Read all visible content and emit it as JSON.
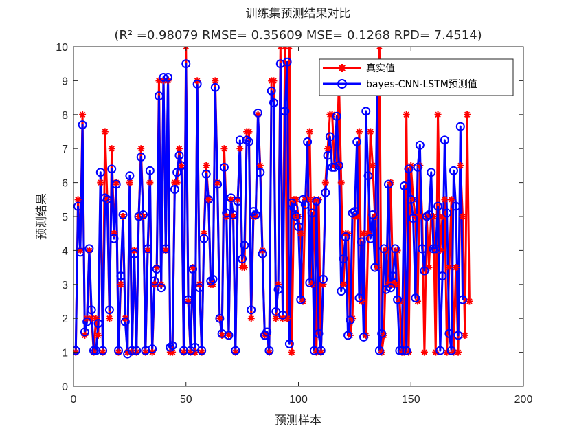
{
  "chart_data": {
    "type": "line",
    "title": "训练集预测结果对比",
    "subtitle": "(R² =0.98079 RMSE= 0.35609 MSE= 0.1268 RPD= 7.4514)",
    "xlabel": "预测样本",
    "ylabel": "预测结果",
    "xlim": [
      0,
      200
    ],
    "ylim": [
      0,
      10
    ],
    "xticks": [
      0,
      50,
      100,
      150,
      200
    ],
    "yticks": [
      0,
      1,
      2,
      3,
      4,
      5,
      6,
      7,
      8,
      9,
      10
    ],
    "grid": false,
    "legend_position": "top-right",
    "series": [
      {
        "name": "真实值",
        "color": "#ff0000",
        "marker": "asterisk",
        "values": [
          1,
          5.5,
          4,
          8,
          1.5,
          2,
          4,
          2,
          1,
          2,
          1.5,
          6,
          1,
          7.5,
          5.5,
          2,
          7,
          4.5,
          6,
          1,
          3,
          5,
          2,
          1,
          6,
          1,
          4,
          1,
          5,
          7,
          5,
          1,
          4,
          6,
          1,
          3,
          3.5,
          9,
          3,
          9,
          4,
          9,
          1,
          1,
          6,
          6,
          7,
          6.5,
          1,
          10,
          2.5,
          1,
          3.5,
          1,
          9,
          3,
          1,
          4.5,
          6.5,
          5.5,
          3,
          3,
          9,
          6,
          2,
          1.5,
          7,
          5,
          1.5,
          5.5,
          5,
          1,
          5.5,
          7,
          3.5,
          3.5,
          7.5,
          7.5,
          2,
          5,
          5,
          8,
          6.5,
          4,
          1.5,
          1.5,
          1,
          9,
          9,
          2,
          3,
          10,
          2,
          10,
          2,
          10,
          1,
          5.5,
          5.5,
          5,
          4.5,
          2.5,
          5.5,
          5.5,
          7.5,
          3,
          5.5,
          1,
          5.5,
          1,
          3,
          6,
          7,
          8,
          8,
          6.5,
          6.5,
          9,
          6,
          3,
          4.5,
          4.5,
          1.5,
          2,
          5,
          5,
          7.5,
          2.5,
          4.5,
          1.5,
          4.5,
          7.5,
          6.5,
          5,
          3.5,
          10,
          1,
          1.5,
          4,
          3,
          6,
          3,
          3,
          4,
          2.5,
          1,
          1,
          8,
          1,
          6.5,
          5.5,
          5,
          2.5,
          6.5,
          5,
          1,
          5,
          3.5,
          5,
          5,
          1,
          8,
          4,
          5,
          5.5,
          1,
          3.5,
          5.5,
          1,
          3.5,
          1,
          6.5,
          5,
          1.5,
          8,
          2.5
        ]
      },
      {
        "name": "bayes-CNN-LSTM预测值",
        "color": "#0000ff",
        "marker": "circle",
        "values": [
          1.05,
          5.3,
          3.95,
          7.7,
          1.6,
          1.9,
          4.05,
          2.25,
          1.05,
          1.05,
          1.85,
          6.3,
          1.05,
          5.55,
          5.5,
          2.25,
          6.4,
          4.35,
          5.95,
          1.05,
          3.25,
          5.05,
          1.9,
          0.95,
          6.2,
          1.05,
          3.9,
          1.05,
          5,
          6.75,
          5.05,
          1.05,
          4.05,
          6.35,
          1.1,
          3.1,
          3.45,
          8.55,
          2.9,
          9.1,
          4.05,
          9.1,
          1.15,
          1.2,
          5.8,
          6.3,
          6.8,
          6.5,
          1.05,
          9.5,
          2.55,
          1.05,
          3.45,
          1.15,
          8.9,
          2.9,
          1.05,
          4.35,
          6.25,
          5.5,
          3.1,
          3.15,
          8.8,
          5.95,
          2,
          1.55,
          6.45,
          5.1,
          1.5,
          5.55,
          5.05,
          1.05,
          5.45,
          7.25,
          3.75,
          4.15,
          7.25,
          7.2,
          2.25,
          5.15,
          5.05,
          8.05,
          6.3,
          3.9,
          1.5,
          1.6,
          1.05,
          8.7,
          8.35,
          2.2,
          2.85,
          9.5,
          2.1,
          8.1,
          9.55,
          1.25,
          5.4,
          5.25,
          5,
          4.7,
          2.55,
          5.5,
          5.35,
          7.2,
          3.05,
          5.1,
          1.05,
          5.45,
          1.55,
          1.05,
          3.15,
          5.7,
          6.8,
          7.35,
          6.45,
          6.45,
          7.95,
          6.5,
          2.8,
          3.75,
          4.4,
          1.5,
          1.95,
          5.1,
          5.15,
          7.2,
          2.6,
          4.25,
          1.45,
          8.1,
          6.2,
          4.35,
          5.05,
          3.5,
          8.95,
          1.05,
          1.55,
          4.05,
          2.85,
          5.95,
          2.9,
          3.25,
          4.05,
          2.55,
          1.05,
          1.05,
          5.9,
          1.05,
          6.4,
          5.5,
          4.95,
          2.6,
          6.45,
          7.1,
          4.05,
          3.4,
          5,
          5.05,
          6.3,
          4.05,
          4.05,
          5.3,
          1.05,
          3.25,
          7.25,
          5.1,
          1.55,
          1.05,
          6.35,
          5.3,
          1.5,
          7.65,
          2.55
        ]
      }
    ]
  }
}
